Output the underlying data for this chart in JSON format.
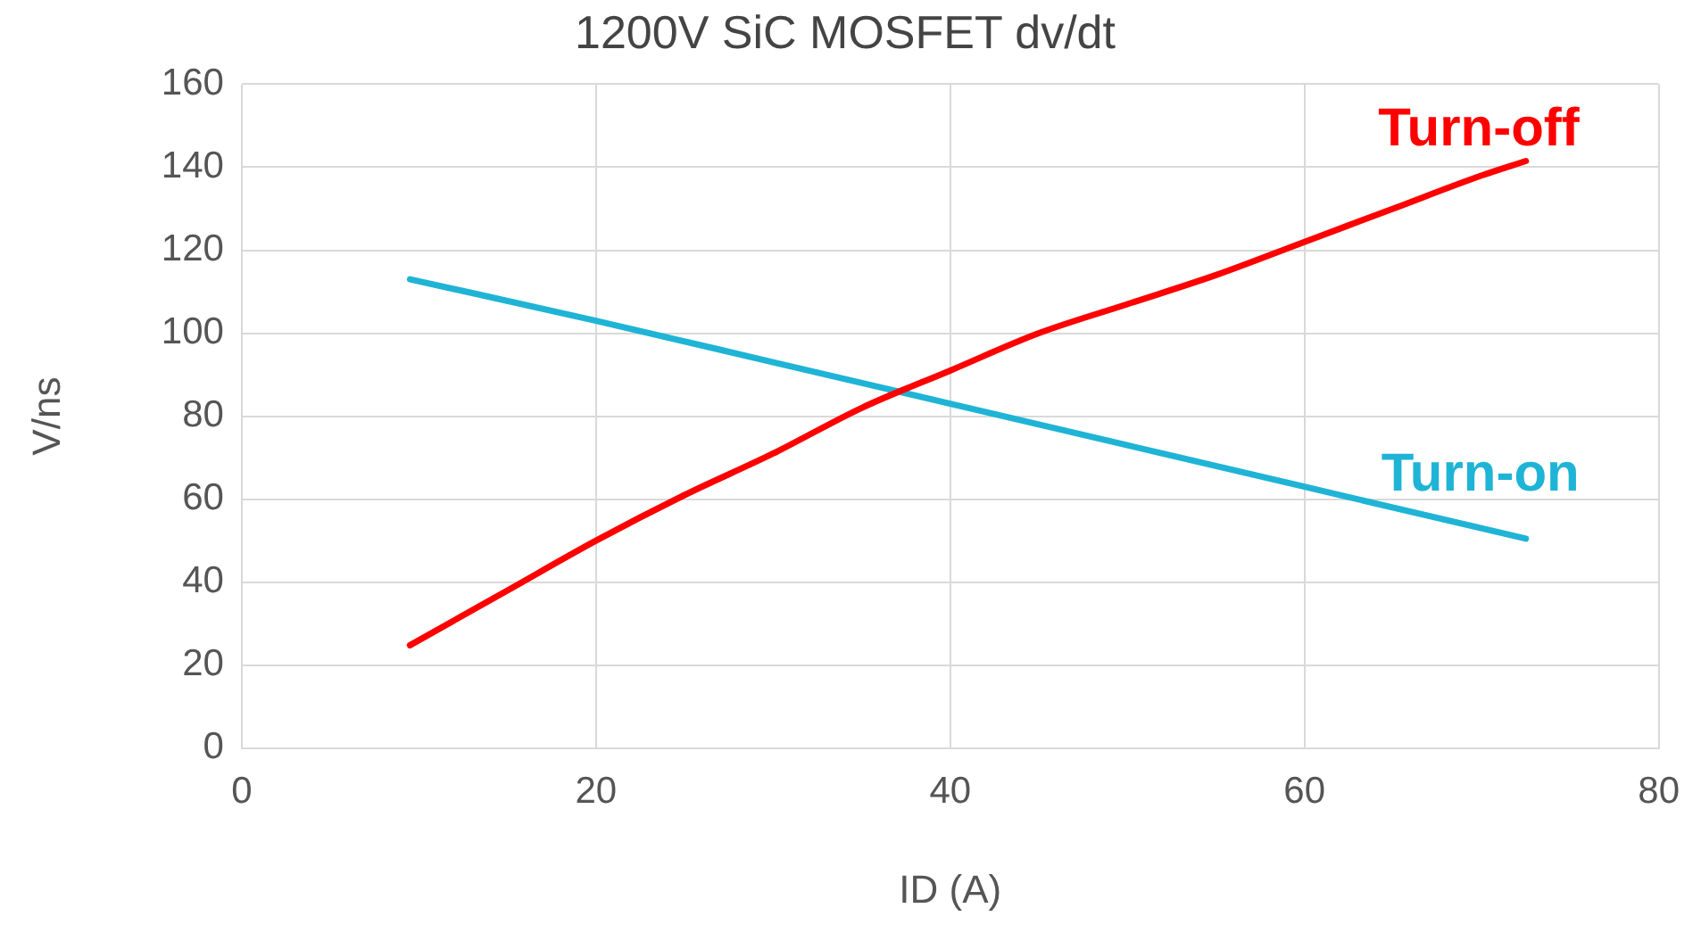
{
  "chart_data": {
    "type": "line",
    "title": "1200V SiC MOSFET dv/dt",
    "xlabel": "ID (A)",
    "ylabel": "V/ns",
    "xlim": [
      0,
      80
    ],
    "xticks": [
      0,
      20,
      40,
      60,
      80
    ],
    "ylim": [
      0,
      160
    ],
    "yticks": [
      0,
      20,
      40,
      60,
      80,
      100,
      120,
      140,
      160
    ],
    "grid": true,
    "legend": false,
    "marker": "none",
    "line_style": "solid",
    "series": [
      {
        "name": "Turn-off",
        "color": "#ff0000",
        "x": [
          9.5,
          15,
          20,
          25,
          30,
          35,
          40,
          45,
          50,
          55,
          60,
          65,
          70,
          72.5
        ],
        "values": [
          24.8,
          38,
          50,
          61,
          71,
          82,
          91,
          100,
          107,
          114,
          122,
          130,
          138,
          141.5
        ]
      },
      {
        "name": "Turn-on",
        "color": "#1fb4d6",
        "x": [
          9.5,
          20,
          30,
          40,
          50,
          60,
          72.5
        ],
        "values": [
          113,
          103,
          93,
          83,
          73,
          63,
          50.5
        ]
      }
    ]
  }
}
